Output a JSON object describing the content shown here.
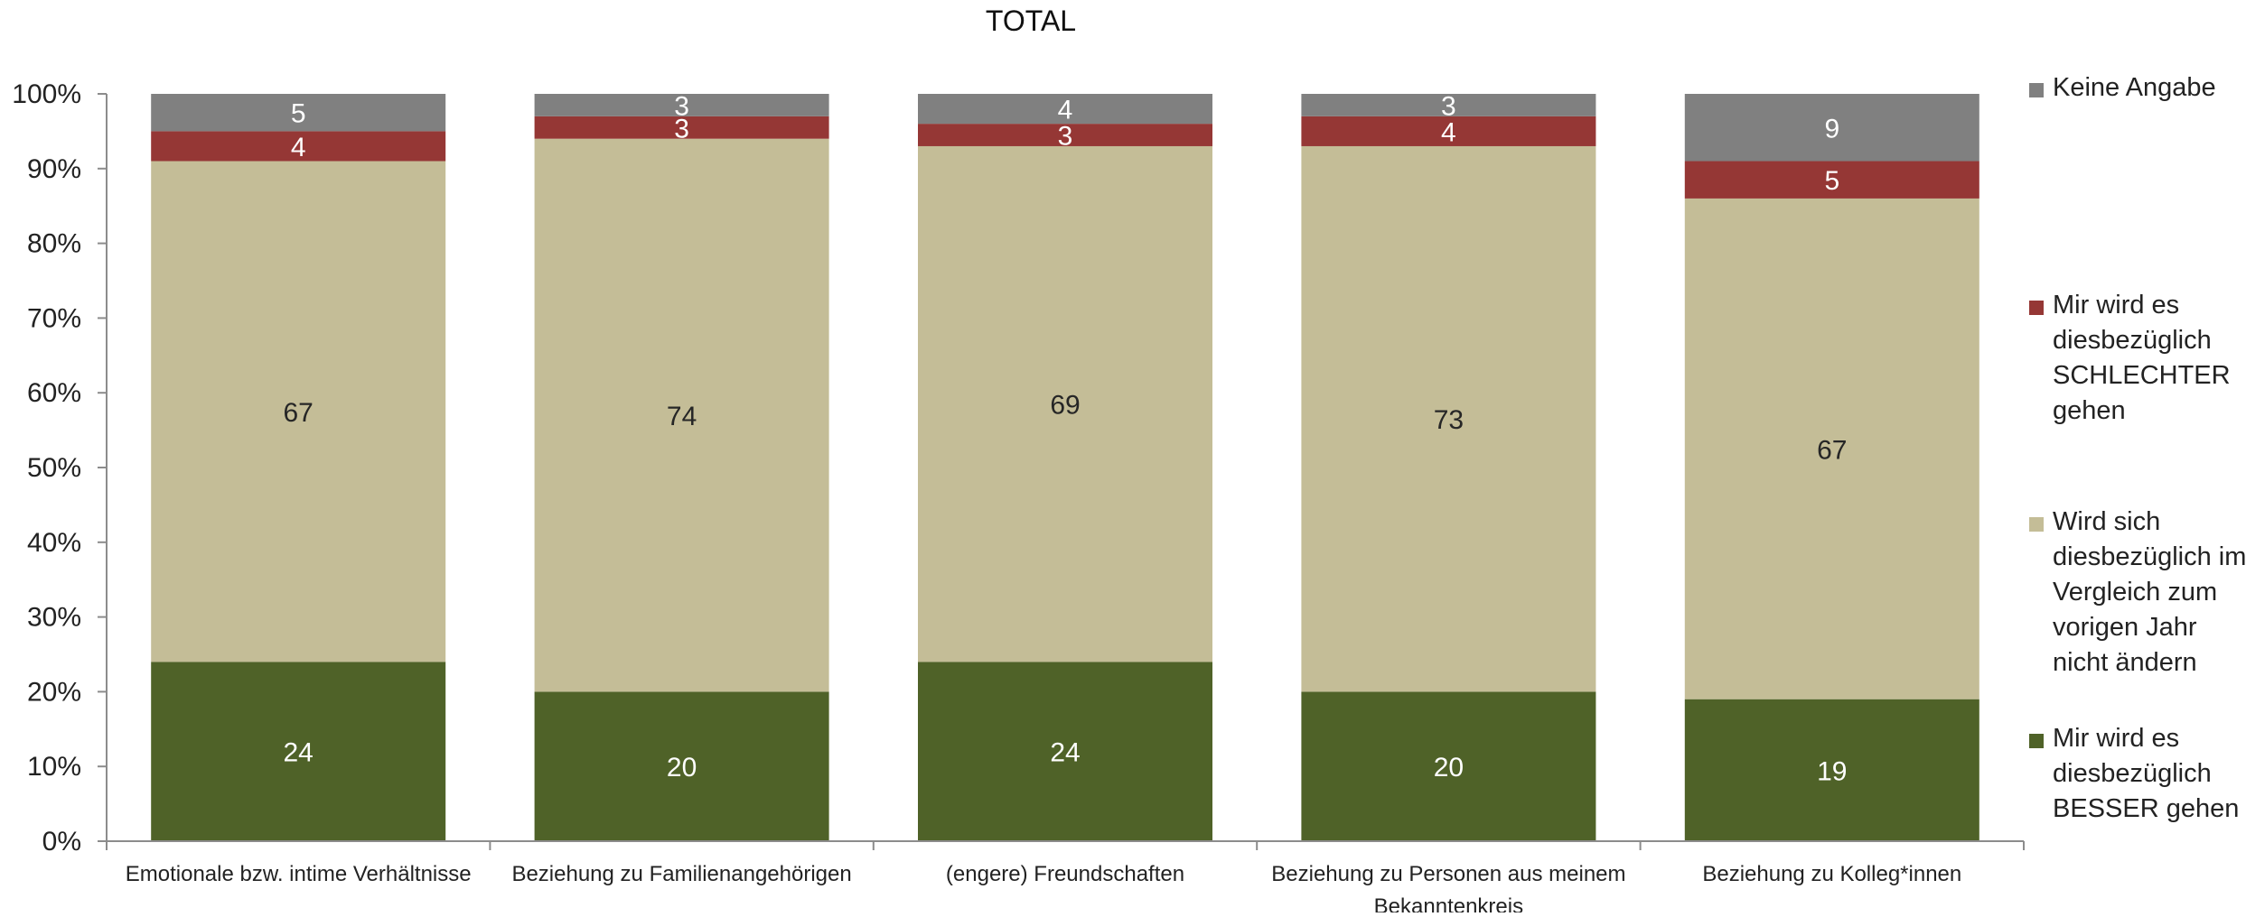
{
  "colors": {
    "besser": "#4f6228",
    "gleich": "#c4bd97",
    "schlechter": "#953735",
    "keine": "#808080",
    "axis": "#8c8c8c",
    "text": "#222222"
  },
  "chart_data": {
    "type": "bar",
    "stacked": true,
    "percent_stacked": true,
    "title": "TOTAL",
    "ylim": [
      0,
      100
    ],
    "y_ticks": [
      "0%",
      "10%",
      "20%",
      "30%",
      "40%",
      "50%",
      "60%",
      "70%",
      "80%",
      "90%",
      "100%"
    ],
    "grid": false,
    "legend_position": "right",
    "categories": [
      "Emotionale bzw. intime Verhältnisse",
      "Beziehung zu Familienangehörigen",
      "(engere) Freundschaften",
      "Beziehung zu Personen aus meinem Bekanntenkreis",
      "Beziehung zu Kolleg*innen"
    ],
    "series": [
      {
        "name": "Mir wird es diesbezüglich BESSER gehen",
        "color_key": "besser",
        "values": [
          24,
          20,
          24,
          20,
          19
        ]
      },
      {
        "name": "Wird sich diesbezüglich im Vergleich zum vorigen Jahr nicht ändern",
        "color_key": "gleich",
        "values": [
          67,
          74,
          69,
          73,
          67
        ]
      },
      {
        "name": "Mir wird es diesbezüglich SCHLECHTER gehen",
        "color_key": "schlechter",
        "values": [
          4,
          3,
          3,
          4,
          5
        ]
      },
      {
        "name": "Keine Angabe",
        "color_key": "keine",
        "values": [
          5,
          3,
          4,
          3,
          9
        ]
      }
    ]
  }
}
